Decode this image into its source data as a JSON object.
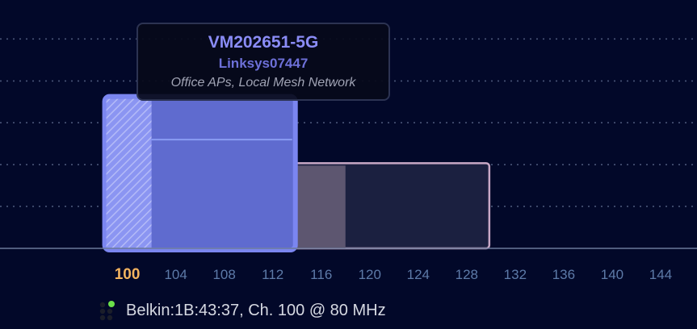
{
  "chart_data": {
    "type": "bar",
    "x_axis": {
      "ticks": [
        100,
        104,
        108,
        112,
        116,
        120,
        124,
        128,
        132,
        136,
        140,
        144
      ],
      "tick_labels": [
        "100",
        "104",
        "108",
        "112",
        "116",
        "120",
        "124",
        "128",
        "132",
        "136",
        "140",
        "144"
      ],
      "selected_tick": 100,
      "range": [
        89.5,
        147
      ]
    },
    "y_axis": {
      "range": [
        0,
        1
      ],
      "gridlines": [
        0.169,
        0.337,
        0.506,
        0.674,
        0.843
      ],
      "grid": true
    },
    "networks": [
      {
        "channel_start": 98,
        "channel_end": 114,
        "level": 0.618,
        "secondary_level": 0.438,
        "hatch_end": 102,
        "color": "#5f6bcf",
        "border_color": "#7b86f0",
        "highlighted": true
      },
      {
        "channel_start": 114,
        "channel_end": 130,
        "level": 0.343,
        "shade_end": 118,
        "color": "#1b2040",
        "border_color": "#c8a8c6",
        "highlighted": false
      }
    ],
    "tooltip": {
      "ssid": "VM202651-5G",
      "vendor": "Linksys07447",
      "groups": "Office APs, Local Mesh Network"
    }
  },
  "status_bar": {
    "icon": "signal-dots-icon",
    "text": "Belkin:1B:43:37, Ch. 100 @ 80 MHz",
    "status_color": "#6be04a"
  }
}
